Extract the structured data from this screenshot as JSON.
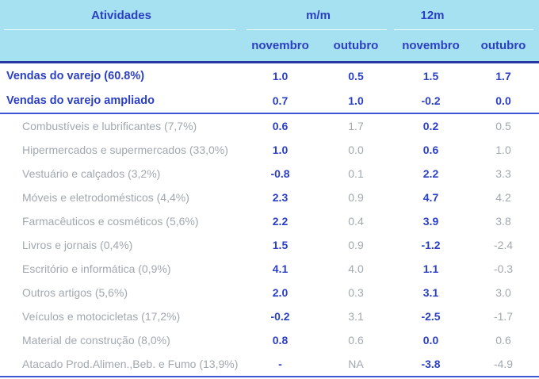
{
  "chart_data": {
    "type": "table",
    "title_col": "Atividades",
    "col_groups": [
      {
        "label": "m/m",
        "span": 2
      },
      {
        "label": "12m",
        "span": 2
      }
    ],
    "columns": [
      "novembro",
      "outubro",
      "novembro",
      "outubro"
    ],
    "rows": [
      {
        "label": "Vendas do varejo (60.8%)",
        "values": [
          "1.0",
          "0.5",
          "1.5",
          "1.7"
        ],
        "emphasis": "summary"
      },
      {
        "label": "Vendas do varejo ampliado",
        "values": [
          "0.7",
          "1.0",
          "-0.2",
          "0.0"
        ],
        "emphasis": "summary"
      },
      {
        "label": "Combustíveis e lubrificantes (7,7%)",
        "values": [
          "0.6",
          "1.7",
          "0.2",
          "0.5"
        ],
        "emphasis": "detail"
      },
      {
        "label": "Hipermercados e supermercados (33,0%)",
        "values": [
          "1.0",
          "0.0",
          "0.6",
          "1.0"
        ],
        "emphasis": "detail"
      },
      {
        "label": "Vestuário e calçados (3,2%)",
        "values": [
          "-0.8",
          "0.1",
          "2.2",
          "3.3"
        ],
        "emphasis": "detail"
      },
      {
        "label": "Móveis e eletrodomésticos (4,4%)",
        "values": [
          "2.3",
          "0.9",
          "4.7",
          "4.2"
        ],
        "emphasis": "detail"
      },
      {
        "label": "Farmacêuticos e cosméticos (5,6%)",
        "values": [
          "2.2",
          "0.4",
          "3.9",
          "3.8"
        ],
        "emphasis": "detail"
      },
      {
        "label": "Livros e jornais (0,4%)",
        "values": [
          "1.5",
          "0.9",
          "-1.2",
          "-2.4"
        ],
        "emphasis": "detail"
      },
      {
        "label": "Escritório e informática (0,9%)",
        "values": [
          "4.1",
          "4.0",
          "1.1",
          "-0.3"
        ],
        "emphasis": "detail"
      },
      {
        "label": "Outros artigos (5,6%)",
        "values": [
          "2.0",
          "0.3",
          "3.1",
          "3.0"
        ],
        "emphasis": "detail"
      },
      {
        "label": "Veículos e motocicletas (17,2%)",
        "values": [
          "-0.2",
          "3.1",
          "-2.5",
          "-1.7"
        ],
        "emphasis": "detail"
      },
      {
        "label": "Material de construção (8,0%)",
        "values": [
          "0.8",
          "0.6",
          "0.0",
          "0.6"
        ],
        "emphasis": "detail"
      },
      {
        "label": "Atacado Prod.Alimen.,Beb. e Fumo (13,9%)",
        "values": [
          "-",
          "NA",
          "-3.8",
          "-4.9"
        ],
        "emphasis": "detail"
      }
    ],
    "layout": {
      "value_column_style": "novembro columns bold blue, outubro columns gray",
      "header_background": true
    }
  },
  "colors": {
    "header_bg": "#a6e1f2",
    "accent_blue": "#2b3fc4",
    "navy_border": "#2636a2",
    "rule_blue": "#3d55d6",
    "muted_gray": "#a2a8af"
  }
}
